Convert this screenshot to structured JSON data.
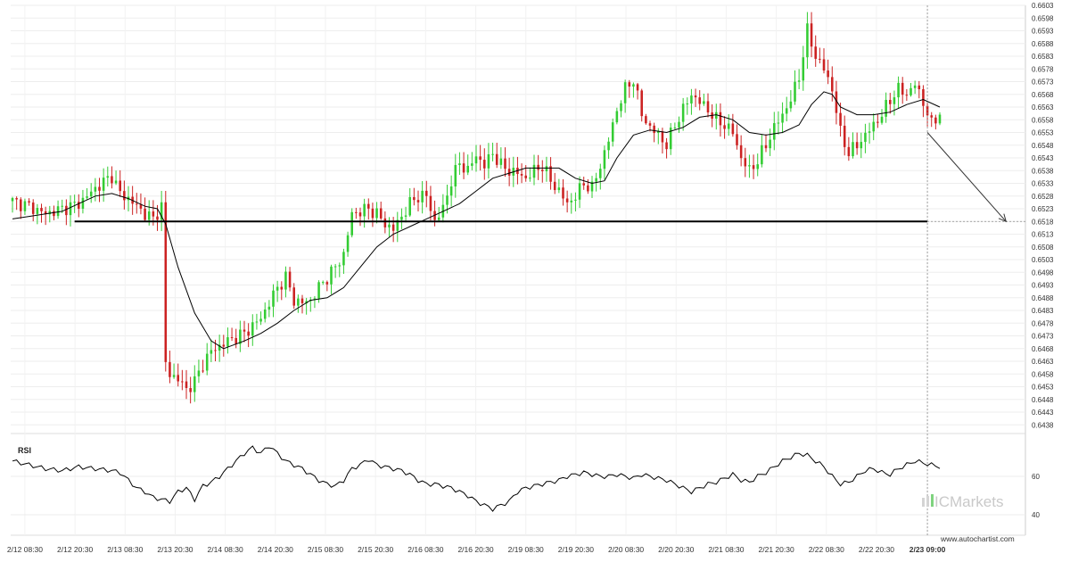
{
  "chart_data": [
    {
      "type": "candlestick",
      "title": "",
      "ylim": [
        0.6436,
        0.6603
      ],
      "y_ticks": [
        "0.6603",
        "0.6598",
        "0.6593",
        "0.6588",
        "0.6583",
        "0.6578",
        "0.6573",
        "0.6568",
        "0.6563",
        "0.6558",
        "0.6553",
        "0.6548",
        "0.6543",
        "0.6538",
        "0.6533",
        "0.6528",
        "0.6523",
        "0.6518",
        "0.6513",
        "0.6508",
        "0.6503",
        "0.6498",
        "0.6493",
        "0.6488",
        "0.6483",
        "0.6478",
        "0.6473",
        "0.6468",
        "0.6463",
        "0.6458",
        "0.6453",
        "0.6448",
        "0.6443",
        "0.6438"
      ],
      "x_ticks": [
        "2/12 08:30",
        "2/12 20:30",
        "2/13 08:30",
        "2/13 20:30",
        "2/14 08:30",
        "2/14 20:30",
        "2/15 08:30",
        "2/15 20:30",
        "2/16 08:30",
        "2/16 20:30",
        "2/19 08:30",
        "2/19 20:30",
        "2/20 08:30",
        "2/20 20:30",
        "2/21 08:30",
        "2/21 20:30",
        "2/22 08:30",
        "2/22 20:30",
        "2/23 09:00"
      ],
      "close_path": [
        [
          0,
          0.6526
        ],
        [
          4,
          0.6524
        ],
        [
          8,
          0.6521
        ],
        [
          12,
          0.6523
        ],
        [
          16,
          0.6525
        ],
        [
          20,
          0.6531
        ],
        [
          24,
          0.6536
        ],
        [
          26,
          0.6529
        ],
        [
          28,
          0.6527
        ],
        [
          30,
          0.6524
        ],
        [
          32,
          0.6521
        ],
        [
          34,
          0.6519
        ],
        [
          36,
          0.6524
        ],
        [
          37,
          0.6462
        ],
        [
          38,
          0.6458
        ],
        [
          40,
          0.6456
        ],
        [
          42,
          0.6452
        ],
        [
          44,
          0.6455
        ],
        [
          46,
          0.6462
        ],
        [
          48,
          0.6467
        ],
        [
          52,
          0.6471
        ],
        [
          56,
          0.6474
        ],
        [
          60,
          0.648
        ],
        [
          62,
          0.6486
        ],
        [
          64,
          0.6492
        ],
        [
          66,
          0.6496
        ],
        [
          68,
          0.6487
        ],
        [
          70,
          0.6486
        ],
        [
          72,
          0.6487
        ],
        [
          74,
          0.6492
        ],
        [
          76,
          0.6496
        ],
        [
          78,
          0.65
        ],
        [
          80,
          0.6505
        ],
        [
          82,
          0.6521
        ],
        [
          84,
          0.6522
        ],
        [
          86,
          0.6523
        ],
        [
          88,
          0.6521
        ],
        [
          90,
          0.6517
        ],
        [
          92,
          0.6515
        ],
        [
          94,
          0.652
        ],
        [
          96,
          0.6525
        ],
        [
          98,
          0.6528
        ],
        [
          100,
          0.6528
        ],
        [
          102,
          0.6518
        ],
        [
          104,
          0.6523
        ],
        [
          106,
          0.6534
        ],
        [
          108,
          0.6541
        ],
        [
          110,
          0.6538
        ],
        [
          112,
          0.6544
        ],
        [
          114,
          0.654
        ],
        [
          116,
          0.6545
        ],
        [
          118,
          0.654
        ],
        [
          120,
          0.6538
        ],
        [
          122,
          0.6537
        ],
        [
          124,
          0.6535
        ],
        [
          126,
          0.6538
        ],
        [
          128,
          0.654
        ],
        [
          130,
          0.6534
        ],
        [
          132,
          0.653
        ],
        [
          134,
          0.6525
        ],
        [
          136,
          0.6528
        ],
        [
          138,
          0.6533
        ],
        [
          140,
          0.6531
        ],
        [
          142,
          0.654
        ],
        [
          144,
          0.655
        ],
        [
          146,
          0.6562
        ],
        [
          148,
          0.657
        ],
        [
          150,
          0.6574
        ],
        [
          152,
          0.656
        ],
        [
          154,
          0.6555
        ],
        [
          156,
          0.6552
        ],
        [
          158,
          0.6548
        ],
        [
          160,
          0.6556
        ],
        [
          162,
          0.6562
        ],
        [
          164,
          0.6568
        ],
        [
          166,
          0.6565
        ],
        [
          168,
          0.6562
        ],
        [
          170,
          0.6558
        ],
        [
          172,
          0.6556
        ],
        [
          174,
          0.6553
        ],
        [
          176,
          0.6543
        ],
        [
          178,
          0.6538
        ],
        [
          180,
          0.6542
        ],
        [
          182,
          0.6548
        ],
        [
          184,
          0.6555
        ],
        [
          186,
          0.656
        ],
        [
          188,
          0.6566
        ],
        [
          190,
          0.6575
        ],
        [
          192,
          0.6593
        ],
        [
          194,
          0.6583
        ],
        [
          196,
          0.6578
        ],
        [
          198,
          0.657
        ],
        [
          200,
          0.6553
        ],
        [
          202,
          0.6545
        ],
        [
          204,
          0.6548
        ],
        [
          206,
          0.6552
        ],
        [
          208,
          0.6556
        ],
        [
          210,
          0.656
        ],
        [
          212,
          0.6566
        ],
        [
          214,
          0.657
        ],
        [
          216,
          0.6568
        ],
        [
          218,
          0.6572
        ],
        [
          220,
          0.6565
        ],
        [
          222,
          0.6556
        ],
        [
          224,
          0.6561
        ]
      ],
      "moving_average": [
        [
          0,
          0.6519
        ],
        [
          4,
          0.652
        ],
        [
          8,
          0.6521
        ],
        [
          12,
          0.6522
        ],
        [
          16,
          0.6525
        ],
        [
          20,
          0.6528
        ],
        [
          24,
          0.6529
        ],
        [
          28,
          0.6527
        ],
        [
          32,
          0.6524
        ],
        [
          35,
          0.6523
        ],
        [
          37,
          0.6517
        ],
        [
          40,
          0.65
        ],
        [
          44,
          0.6482
        ],
        [
          48,
          0.6471
        ],
        [
          51,
          0.6468
        ],
        [
          56,
          0.6471
        ],
        [
          60,
          0.6474
        ],
        [
          64,
          0.6478
        ],
        [
          68,
          0.6483
        ],
        [
          72,
          0.6487
        ],
        [
          76,
          0.6488
        ],
        [
          80,
          0.6492
        ],
        [
          84,
          0.65
        ],
        [
          88,
          0.6508
        ],
        [
          92,
          0.6513
        ],
        [
          96,
          0.6516
        ],
        [
          100,
          0.6519
        ],
        [
          104,
          0.6522
        ],
        [
          108,
          0.6525
        ],
        [
          112,
          0.653
        ],
        [
          116,
          0.6535
        ],
        [
          120,
          0.6537
        ],
        [
          124,
          0.6539
        ],
        [
          128,
          0.6539
        ],
        [
          132,
          0.6539
        ],
        [
          136,
          0.6535
        ],
        [
          140,
          0.6533
        ],
        [
          143,
          0.6534
        ],
        [
          146,
          0.6543
        ],
        [
          150,
          0.6552
        ],
        [
          154,
          0.6554
        ],
        [
          158,
          0.6553
        ],
        [
          162,
          0.6555
        ],
        [
          166,
          0.6559
        ],
        [
          170,
          0.656
        ],
        [
          174,
          0.6558
        ],
        [
          178,
          0.6553
        ],
        [
          182,
          0.6552
        ],
        [
          186,
          0.6553
        ],
        [
          190,
          0.6556
        ],
        [
          193,
          0.6564
        ],
        [
          196,
          0.6569
        ],
        [
          198,
          0.6568
        ],
        [
          200,
          0.6563
        ],
        [
          204,
          0.656
        ],
        [
          208,
          0.656
        ],
        [
          212,
          0.6561
        ],
        [
          216,
          0.6564
        ],
        [
          220,
          0.6566
        ],
        [
          224,
          0.6563
        ]
      ],
      "horizontal_level": 0.6518,
      "projection": {
        "from": [
          221,
          0.6553
        ],
        "to": [
          240,
          0.6518
        ]
      },
      "current_time_index": 221
    },
    {
      "type": "line",
      "label": "RSI",
      "ylim": [
        30,
        80
      ],
      "y_ticks": [
        "60",
        "40"
      ],
      "values": [
        [
          0,
          68
        ],
        [
          4,
          66
        ],
        [
          8,
          64
        ],
        [
          12,
          63
        ],
        [
          16,
          65
        ],
        [
          20,
          64
        ],
        [
          24,
          63
        ],
        [
          26,
          62
        ],
        [
          28,
          58
        ],
        [
          30,
          54
        ],
        [
          32,
          52
        ],
        [
          34,
          49
        ],
        [
          36,
          48
        ],
        [
          38,
          47
        ],
        [
          40,
          52
        ],
        [
          42,
          54
        ],
        [
          44,
          48
        ],
        [
          46,
          55
        ],
        [
          48,
          57
        ],
        [
          50,
          60
        ],
        [
          52,
          64
        ],
        [
          54,
          68
        ],
        [
          56,
          72
        ],
        [
          58,
          75
        ],
        [
          60,
          72
        ],
        [
          62,
          76
        ],
        [
          64,
          72
        ],
        [
          66,
          68
        ],
        [
          68,
          66
        ],
        [
          70,
          64
        ],
        [
          72,
          61
        ],
        [
          74,
          58
        ],
        [
          76,
          56
        ],
        [
          78,
          55
        ],
        [
          80,
          58
        ],
        [
          82,
          64
        ],
        [
          84,
          66
        ],
        [
          86,
          69
        ],
        [
          88,
          66
        ],
        [
          90,
          65
        ],
        [
          92,
          64
        ],
        [
          94,
          63
        ],
        [
          96,
          61
        ],
        [
          98,
          58
        ],
        [
          100,
          56
        ],
        [
          102,
          56
        ],
        [
          104,
          55
        ],
        [
          106,
          54
        ],
        [
          108,
          52
        ],
        [
          110,
          50
        ],
        [
          112,
          47
        ],
        [
          114,
          45
        ],
        [
          116,
          43
        ],
        [
          118,
          45
        ],
        [
          120,
          47
        ],
        [
          122,
          52
        ],
        [
          124,
          54
        ],
        [
          126,
          55
        ],
        [
          128,
          56
        ],
        [
          130,
          57
        ],
        [
          132,
          58
        ],
        [
          134,
          60
        ],
        [
          136,
          61
        ],
        [
          138,
          62
        ],
        [
          140,
          61
        ],
        [
          142,
          60
        ],
        [
          144,
          60
        ],
        [
          146,
          61
        ],
        [
          148,
          60
        ],
        [
          150,
          59
        ],
        [
          152,
          61
        ],
        [
          154,
          60
        ],
        [
          156,
          59
        ],
        [
          158,
          58
        ],
        [
          160,
          56
        ],
        [
          162,
          54
        ],
        [
          164,
          52
        ],
        [
          166,
          54
        ],
        [
          168,
          56
        ],
        [
          170,
          57
        ],
        [
          172,
          59
        ],
        [
          174,
          61
        ],
        [
          176,
          58
        ],
        [
          178,
          57
        ],
        [
          180,
          60
        ],
        [
          182,
          62
        ],
        [
          184,
          65
        ],
        [
          186,
          68
        ],
        [
          188,
          70
        ],
        [
          190,
          72
        ],
        [
          192,
          71
        ],
        [
          194,
          68
        ],
        [
          196,
          65
        ],
        [
          198,
          60
        ],
        [
          200,
          56
        ],
        [
          202,
          57
        ],
        [
          204,
          60
        ],
        [
          206,
          63
        ],
        [
          208,
          64
        ],
        [
          210,
          62
        ],
        [
          212,
          61
        ],
        [
          214,
          64
        ],
        [
          216,
          66
        ],
        [
          218,
          68
        ],
        [
          220,
          67
        ],
        [
          222,
          66
        ],
        [
          224,
          65
        ]
      ]
    }
  ],
  "labels": {
    "rsi": "RSI",
    "watermark": "ICMarkets",
    "site": "www.autochartist.com"
  },
  "colors": {
    "up": "#33cc33",
    "down": "#cc2222",
    "line": "#000000",
    "grid": "#ededed"
  }
}
